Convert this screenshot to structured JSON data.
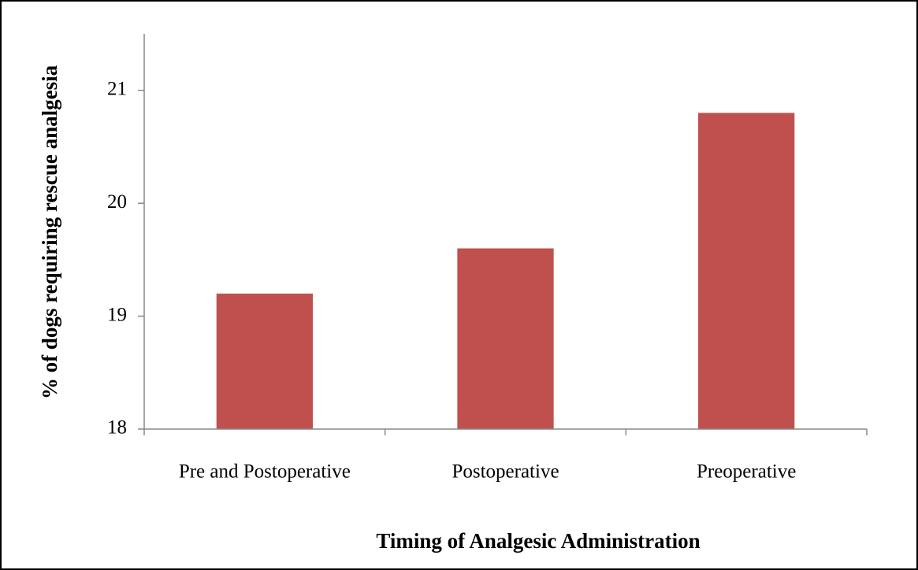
{
  "chart_data": {
    "type": "bar",
    "xlabel": "Timing of Analgesic Administration",
    "ylabel": "% of dogs requiring rescue analgesia",
    "categories": [
      "Pre and Postoperative",
      "Postoperative",
      "Preoperative"
    ],
    "values": [
      19.2,
      19.6,
      20.8
    ],
    "color": "#c0504d",
    "ylim": [
      18,
      21.5
    ],
    "yticks": [
      18,
      19,
      20,
      21
    ],
    "grid": false
  }
}
